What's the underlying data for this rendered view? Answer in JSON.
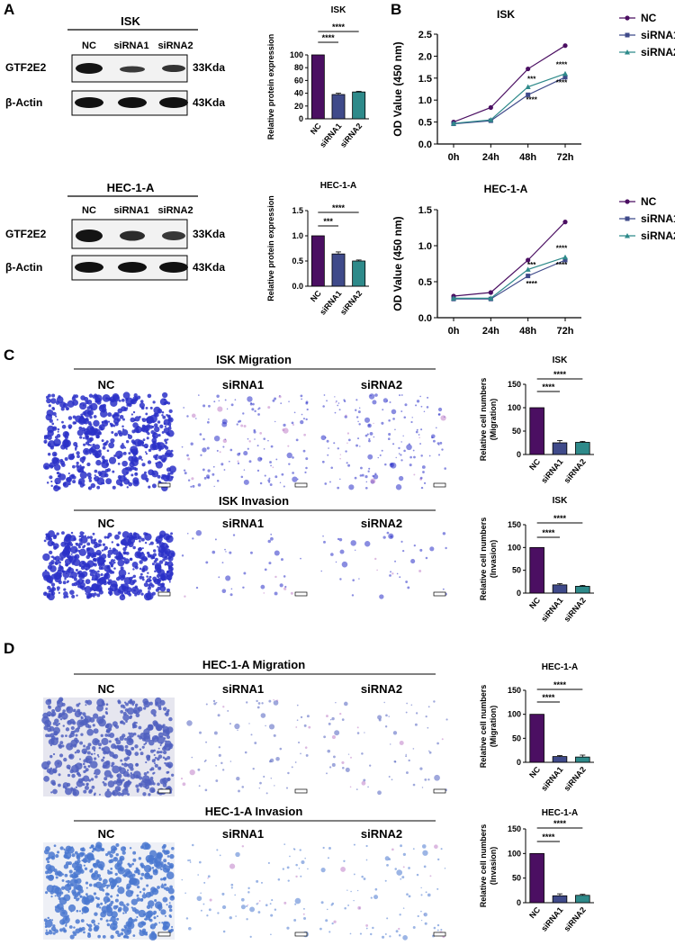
{
  "panels": {
    "A": "A",
    "B": "B",
    "C": "C",
    "D": "D"
  },
  "blots": [
    {
      "title": "ISK",
      "lanes": [
        "NC",
        "siRNA1",
        "siRNA2"
      ],
      "rows": [
        {
          "label": "GTF2E2",
          "size": "33Kda",
          "intensity": [
            1.0,
            0.38,
            0.42
          ]
        },
        {
          "label": "β-Actin",
          "size": "43Kda",
          "intensity": [
            1.0,
            1.0,
            1.0
          ]
        }
      ]
    },
    {
      "title": "HEC-1-A",
      "lanes": [
        "NC",
        "siRNA1",
        "siRNA2"
      ],
      "rows": [
        {
          "label": "GTF2E2",
          "size": "33Kda",
          "intensity": [
            1.0,
            0.65,
            0.5
          ]
        },
        {
          "label": "β-Actin",
          "size": "43Kda",
          "intensity": [
            1.0,
            1.0,
            1.0
          ]
        }
      ]
    }
  ],
  "micrographs": {
    "C": [
      {
        "title": "ISK Migration",
        "labels": [
          "NC",
          "siRNA1",
          "siRNA2"
        ],
        "density": [
          1.0,
          0.25,
          0.27
        ],
        "tone": "#2a30c8"
      },
      {
        "title": "ISK Invasion",
        "labels": [
          "NC",
          "siRNA1",
          "siRNA2"
        ],
        "density": [
          1.0,
          0.05,
          0.06
        ],
        "tone": "#2a30c8"
      }
    ],
    "D": [
      {
        "title": "HEC-1-A Migration",
        "labels": [
          "NC",
          "siRNA1",
          "siRNA2"
        ],
        "density": [
          1.0,
          0.12,
          0.11
        ],
        "tone": "#5060c0"
      },
      {
        "title": "HEC-1-A Invasion",
        "labels": [
          "NC",
          "siRNA1",
          "siRNA2"
        ],
        "density": [
          1.0,
          0.13,
          0.15
        ],
        "tone": "#4a78d0"
      }
    ]
  },
  "legend": {
    "items": [
      "NC",
      "siRNA1",
      "siRNA2"
    ]
  },
  "colors": {
    "nc": "#4b0f62",
    "si1": "#3f4a8a",
    "si2": "#2e8a8a"
  },
  "chart_data": [
    {
      "id": "A-ISK",
      "type": "bar",
      "title": "ISK",
      "categories": [
        "NC",
        "siRNA1",
        "siRNA2"
      ],
      "values": [
        100,
        38,
        42
      ],
      "errors": [
        0,
        2,
        1
      ],
      "ylabel": "Relative protein expression",
      "ylim": [
        0,
        100
      ],
      "yticks": [
        0,
        20,
        40,
        60,
        80,
        100
      ],
      "ytick_labels": [
        "0",
        "20",
        "40",
        "60",
        "80",
        "100"
      ],
      "sig": [
        {
          "from": 0,
          "to": 1,
          "label": "****"
        },
        {
          "from": 0,
          "to": 2,
          "label": "****"
        }
      ]
    },
    {
      "id": "A-HEC",
      "type": "bar",
      "title": "HEC-1-A",
      "categories": [
        "NC",
        "siRNA1",
        "siRNA2"
      ],
      "values": [
        1.0,
        0.64,
        0.5
      ],
      "errors": [
        0,
        0.04,
        0.02
      ],
      "ylabel": "Relative protein expression",
      "ylim": [
        0,
        1.5
      ],
      "yticks": [
        0,
        0.5,
        1.0,
        1.5
      ],
      "ytick_labels": [
        "0.0",
        "0.5",
        "1.0",
        "1.5"
      ],
      "sig": [
        {
          "from": 0,
          "to": 1,
          "label": "***"
        },
        {
          "from": 0,
          "to": 2,
          "label": "****"
        }
      ]
    },
    {
      "id": "B-ISK",
      "type": "line",
      "title": "ISK",
      "x": [
        "0h",
        "24h",
        "48h",
        "72h"
      ],
      "ylabel": "OD Value (450 nm)",
      "ylim": [
        0,
        2.5
      ],
      "yticks": [
        0,
        0.5,
        1.0,
        1.5,
        2.0,
        2.5
      ],
      "ytick_labels": [
        "0.0",
        "0.5",
        "1.0",
        "1.5",
        "2.0",
        "2.5"
      ],
      "series": [
        {
          "name": "NC",
          "values": [
            0.5,
            0.83,
            1.71,
            2.24
          ]
        },
        {
          "name": "siRNA1",
          "values": [
            0.46,
            0.53,
            1.12,
            1.52
          ]
        },
        {
          "name": "siRNA2",
          "values": [
            0.47,
            0.55,
            1.3,
            1.6
          ]
        }
      ],
      "sig_labels": [
        {
          "x": 2,
          "value": 1.42,
          "label": "***"
        },
        {
          "x": 2,
          "value": 0.95,
          "label": "****"
        },
        {
          "x": 3,
          "value": 1.75,
          "label": "****"
        },
        {
          "x": 3,
          "value": 1.34,
          "label": "****"
        }
      ]
    },
    {
      "id": "B-HEC",
      "type": "line",
      "title": "HEC-1-A",
      "x": [
        "0h",
        "24h",
        "48h",
        "72h"
      ],
      "ylabel": "OD Value (450 nm)",
      "ylim": [
        0,
        1.5
      ],
      "yticks": [
        0,
        0.5,
        1.0,
        1.5
      ],
      "ytick_labels": [
        "0.0",
        "0.5",
        "1.0",
        "1.5"
      ],
      "series": [
        {
          "name": "NC",
          "values": [
            0.3,
            0.35,
            0.8,
            1.33
          ]
        },
        {
          "name": "siRNA1",
          "values": [
            0.26,
            0.26,
            0.58,
            0.8
          ]
        },
        {
          "name": "siRNA2",
          "values": [
            0.27,
            0.27,
            0.67,
            0.84
          ]
        }
      ],
      "sig_labels": [
        {
          "x": 2,
          "value": 0.7,
          "label": "***"
        },
        {
          "x": 2,
          "value": 0.44,
          "label": "****"
        },
        {
          "x": 3,
          "value": 0.93,
          "label": "****"
        },
        {
          "x": 3,
          "value": 0.7,
          "label": "****"
        }
      ]
    },
    {
      "id": "C-Mig",
      "type": "bar",
      "title": "ISK",
      "categories": [
        "NC",
        "siRNA1",
        "siRNA2"
      ],
      "values": [
        100,
        25,
        26
      ],
      "errors": [
        0,
        5,
        2
      ],
      "ylabel": "Relative cell numbers",
      "ylabel2": "(Migration)",
      "ylim": [
        0,
        150
      ],
      "yticks": [
        0,
        50,
        100,
        150
      ],
      "ytick_labels": [
        "0",
        "50",
        "100",
        "150"
      ],
      "sig": [
        {
          "from": 0,
          "to": 1,
          "label": "****"
        },
        {
          "from": 0,
          "to": 2,
          "label": "****"
        }
      ]
    },
    {
      "id": "C-Inv",
      "type": "bar",
      "title": "ISK",
      "categories": [
        "NC",
        "siRNA1",
        "siRNA2"
      ],
      "values": [
        100,
        18,
        15
      ],
      "errors": [
        0,
        3,
        2
      ],
      "ylabel": "Relative cell numbers",
      "ylabel2": "(Invasion)",
      "ylim": [
        0,
        150
      ],
      "yticks": [
        0,
        50,
        100,
        150
      ],
      "ytick_labels": [
        "0",
        "50",
        "100",
        "150"
      ],
      "sig": [
        {
          "from": 0,
          "to": 1,
          "label": "****"
        },
        {
          "from": 0,
          "to": 2,
          "label": "****"
        }
      ]
    },
    {
      "id": "D-Mig",
      "type": "bar",
      "title": "HEC-1-A",
      "categories": [
        "NC",
        "siRNA1",
        "siRNA2"
      ],
      "values": [
        100,
        12,
        11
      ],
      "errors": [
        0,
        2,
        4
      ],
      "ylabel": "Relative cell numbers",
      "ylabel2": "(Migration)",
      "ylim": [
        0,
        150
      ],
      "yticks": [
        0,
        50,
        100,
        150
      ],
      "ytick_labels": [
        "0",
        "50",
        "100",
        "150"
      ],
      "sig": [
        {
          "from": 0,
          "to": 1,
          "label": "****"
        },
        {
          "from": 0,
          "to": 2,
          "label": "****"
        }
      ]
    },
    {
      "id": "D-Inv",
      "type": "bar",
      "title": "HEC-1-A",
      "categories": [
        "NC",
        "siRNA1",
        "siRNA2"
      ],
      "values": [
        100,
        14,
        15
      ],
      "errors": [
        0,
        4,
        2
      ],
      "ylabel": "Relative cell numbers",
      "ylabel2": "(Invasion)",
      "ylim": [
        0,
        150
      ],
      "yticks": [
        0,
        50,
        100,
        150
      ],
      "ytick_labels": [
        "0",
        "50",
        "100",
        "150"
      ],
      "sig": [
        {
          "from": 0,
          "to": 1,
          "label": "****"
        },
        {
          "from": 0,
          "to": 2,
          "label": "****"
        }
      ]
    }
  ]
}
